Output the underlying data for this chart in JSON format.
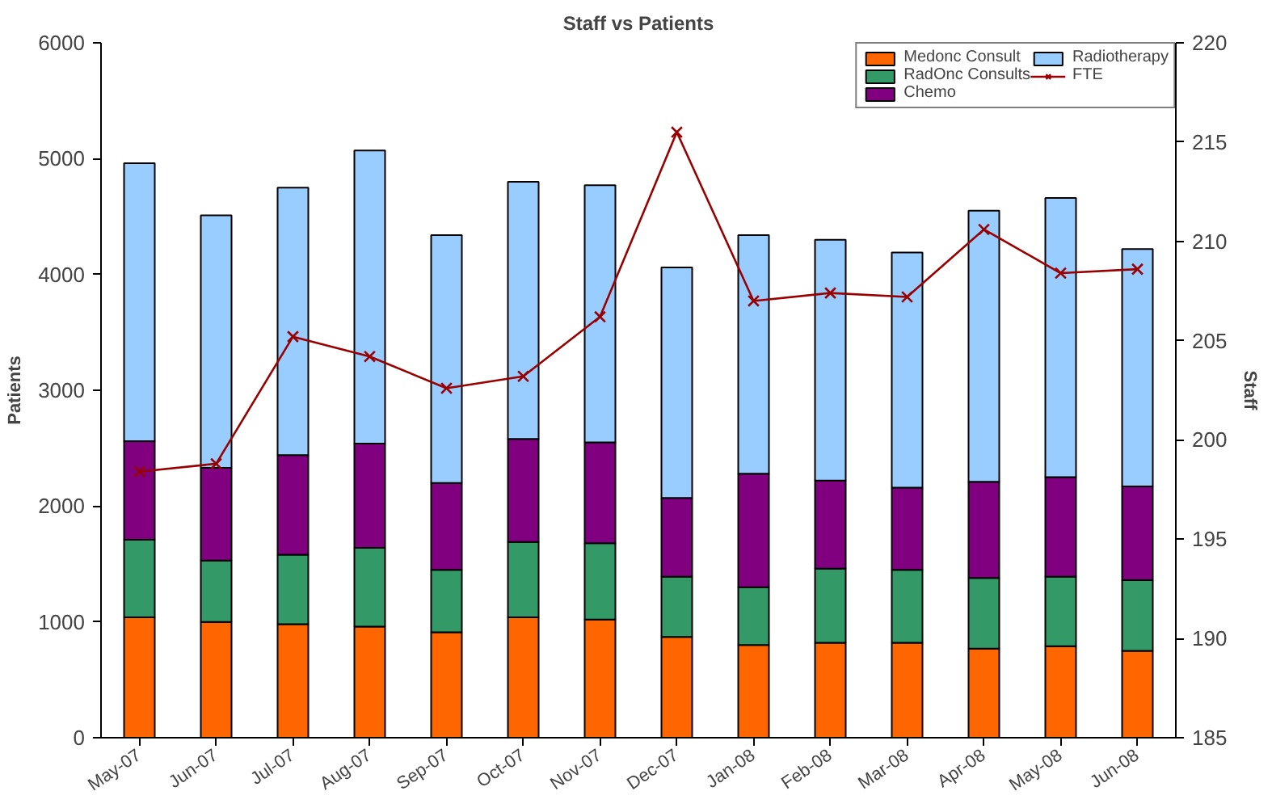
{
  "chart_data": {
    "type": "bar",
    "stacked": true,
    "title": "Staff vs Patients",
    "ylabel": "Patients",
    "y2label": "Staff",
    "categories": [
      "May-07",
      "Jun-07",
      "Jul-07",
      "Aug-07",
      "Sep-07",
      "Oct-07",
      "Nov-07",
      "Dec-07",
      "Jan-08",
      "Feb-08",
      "Mar-08",
      "Apr-08",
      "May-08",
      "Jun-08"
    ],
    "series": [
      {
        "name": "Medonc Consult",
        "color": "#ff6600",
        "values": [
          1040,
          1000,
          980,
          960,
          910,
          1040,
          1020,
          870,
          800,
          820,
          820,
          770,
          790,
          750
        ]
      },
      {
        "name": "RadOnc Consults",
        "color": "#339966",
        "values": [
          670,
          530,
          600,
          680,
          540,
          650,
          660,
          520,
          500,
          640,
          630,
          610,
          600,
          610
        ]
      },
      {
        "name": "Chemo",
        "color": "#800080",
        "values": [
          850,
          800,
          860,
          900,
          750,
          890,
          870,
          680,
          980,
          760,
          710,
          830,
          860,
          810
        ]
      },
      {
        "name": "Radiotherapy",
        "color": "#99ccff",
        "values": [
          2400,
          2180,
          2310,
          2530,
          2140,
          2220,
          2220,
          1990,
          2060,
          2080,
          2030,
          2340,
          2410,
          2050
        ]
      },
      {
        "name": "FTE",
        "type": "line",
        "axis": "y2",
        "color": "#990000",
        "marker": "cross",
        "values": [
          198.4,
          198.8,
          205.2,
          204.2,
          202.6,
          203.2,
          206.2,
          215.5,
          207.0,
          207.4,
          207.2,
          210.6,
          208.4,
          208.6
        ]
      }
    ],
    "ylim": [
      0,
      6000
    ],
    "yticks": [
      0,
      1000,
      2000,
      3000,
      4000,
      5000,
      6000
    ],
    "y2lim": [
      185,
      220
    ],
    "y2ticks": [
      185,
      190,
      195,
      200,
      205,
      210,
      215,
      220
    ],
    "grid": false,
    "legend": "top right"
  }
}
